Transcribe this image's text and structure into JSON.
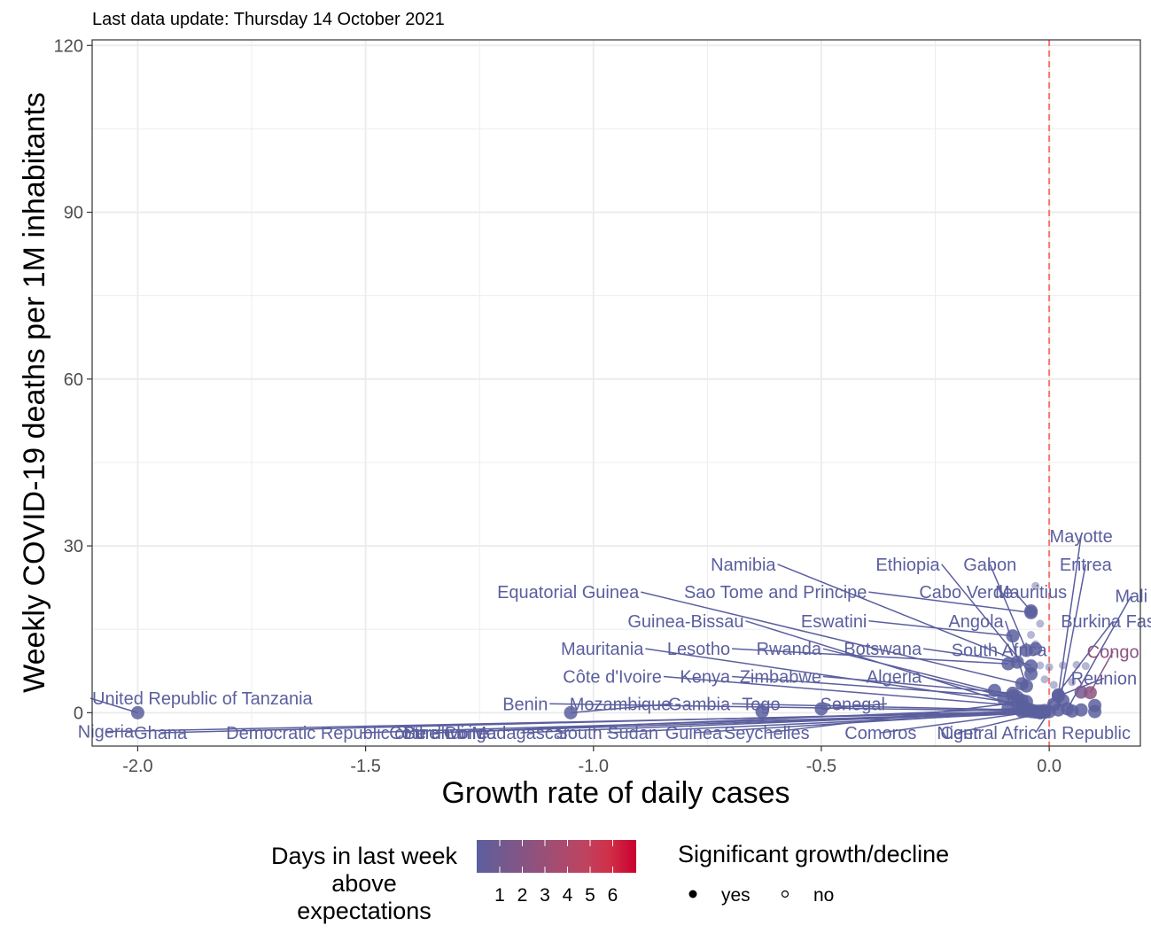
{
  "subtitle": "Last data update: Thursday 14 October 2021",
  "colors": {
    "panel_border": "#333333",
    "grid": "#ebebeb",
    "label": "#5d62a0",
    "zero_line": "#f8766d",
    "gradient": [
      "#5b5f9e",
      "#74598f",
      "#8c5380",
      "#a54c70",
      "#bd4461",
      "#d12f48",
      "#c9002e"
    ]
  },
  "chart_data": {
    "type": "scatter",
    "xlabel": "Growth rate of daily cases",
    "ylabel": "Weekly COVID-19 deaths per 1M inhabitants",
    "xlim": [
      -2.1,
      0.2
    ],
    "ylim": [
      -6,
      121
    ],
    "x_ticks": [
      -2.0,
      -1.5,
      -1.0,
      -0.5,
      0.0
    ],
    "x_tick_labels": [
      "-2.0",
      "-1.5",
      "-1.0",
      "-0.5",
      "0.0"
    ],
    "y_ticks": [
      0,
      30,
      60,
      90,
      120
    ],
    "y_tick_labels": [
      "0",
      "30",
      "60",
      "90",
      "120"
    ],
    "reference_line": {
      "x": 0,
      "style": "dashed"
    },
    "grid": true,
    "legend_position": "bottom",
    "legend": {
      "color_title_lines": [
        "Days in last week",
        "above",
        "expectations"
      ],
      "color_ticks": [
        "1",
        "2",
        "3",
        "4",
        "5",
        "6"
      ],
      "shape_title": "Significant growth/decline",
      "shape_items": [
        "yes",
        "no"
      ]
    },
    "points": [
      {
        "label": "United Republic of Tanzania",
        "x": -2.0,
        "y": 0.0,
        "days": 0,
        "significant": true,
        "lx": -2.1,
        "ly": 2.6,
        "align": "start"
      },
      {
        "label": "Nigeria",
        "x": -0.02,
        "y": 0.1,
        "days": 0,
        "significant": true,
        "lx": -2.07,
        "ly": -3.4,
        "align": "middle"
      },
      {
        "label": "Ghana",
        "x": -0.03,
        "y": 0.3,
        "days": 0,
        "significant": true,
        "lx": -1.95,
        "ly": -3.6,
        "align": "middle"
      },
      {
        "label": "Democratic Republic of the Congo",
        "x": -0.01,
        "y": 0.1,
        "days": 0,
        "significant": true,
        "lx": -1.51,
        "ly": -3.6,
        "align": "middle"
      },
      {
        "label": "Burundi",
        "x": -0.02,
        "y": 0.0,
        "days": 0,
        "significant": true,
        "lx": -1.35,
        "ly": -3.6,
        "align": "middle"
      },
      {
        "label": "Côte d'Ivoire",
        "x": -0.05,
        "y": 0.8,
        "days": 0,
        "significant": true,
        "lx": -1.34,
        "ly": -3.6,
        "align": "middle"
      },
      {
        "label": "Madagascar",
        "x": -0.03,
        "y": 0.1,
        "days": 0,
        "significant": true,
        "lx": -1.16,
        "ly": -3.6,
        "align": "middle"
      },
      {
        "label": "South Sudan",
        "x": -0.02,
        "y": 0.0,
        "days": 0,
        "significant": true,
        "lx": -0.97,
        "ly": -3.6,
        "align": "middle"
      },
      {
        "label": "Guinea",
        "x": -0.04,
        "y": 0.2,
        "days": 0,
        "significant": true,
        "lx": -0.78,
        "ly": -3.6,
        "align": "middle"
      },
      {
        "label": "Seychelles",
        "x": -0.05,
        "y": 2.0,
        "days": 0,
        "significant": true,
        "lx": -0.62,
        "ly": -3.6,
        "align": "middle"
      },
      {
        "label": "Comoros",
        "x": -0.02,
        "y": 0.3,
        "days": 0,
        "significant": true,
        "lx": -0.37,
        "ly": -3.6,
        "align": "middle"
      },
      {
        "label": "Niger",
        "x": -0.01,
        "y": 0.1,
        "days": 0,
        "significant": true,
        "lx": -0.2,
        "ly": -3.6,
        "align": "middle"
      },
      {
        "label": "Central African Republic",
        "x": 0.0,
        "y": 0.2,
        "days": 0,
        "significant": true,
        "lx": -0.03,
        "ly": -3.6,
        "align": "middle"
      },
      {
        "label": "Benin",
        "x": -0.05,
        "y": 0.3,
        "days": 0,
        "significant": true,
        "lx": -1.1,
        "ly": 1.6,
        "align": "end"
      },
      {
        "label": "Mozambique",
        "x": -1.05,
        "y": 0.0,
        "days": 0,
        "significant": true,
        "lx": -0.83,
        "ly": 1.6,
        "align": "end"
      },
      {
        "label": "Gambia",
        "x": -0.06,
        "y": 0.5,
        "days": 0,
        "significant": true,
        "lx": -0.7,
        "ly": 1.6,
        "align": "end"
      },
      {
        "label": "Togo",
        "x": -0.63,
        "y": 0.2,
        "days": 0,
        "significant": true,
        "lx": -0.59,
        "ly": 1.6,
        "align": "end"
      },
      {
        "label": "Senegal",
        "x": -0.5,
        "y": 0.7,
        "days": 0,
        "significant": true,
        "lx": -0.36,
        "ly": 1.6,
        "align": "end"
      },
      {
        "label": "Côte d'Ivoire",
        "x": -0.06,
        "y": 1.2,
        "days": 0,
        "significant": true,
        "lx": -0.85,
        "ly": 6.5,
        "align": "end"
      },
      {
        "label": "Kenya",
        "x": -0.07,
        "y": 2.8,
        "days": 0,
        "significant": true,
        "lx": -0.7,
        "ly": 6.5,
        "align": "end"
      },
      {
        "label": "Zimbabwe",
        "x": -0.08,
        "y": 3.5,
        "days": 0,
        "significant": true,
        "lx": -0.5,
        "ly": 6.5,
        "align": "end"
      },
      {
        "label": "Algeria",
        "x": -0.06,
        "y": 2.2,
        "days": 0,
        "significant": true,
        "lx": -0.28,
        "ly": 6.5,
        "align": "end"
      },
      {
        "label": "Mauritania",
        "x": -0.07,
        "y": 1.7,
        "days": 0,
        "significant": true,
        "lx": -0.89,
        "ly": 11.5,
        "align": "end"
      },
      {
        "label": "Lesotho",
        "x": -0.09,
        "y": 8.8,
        "days": 0,
        "significant": true,
        "lx": -0.7,
        "ly": 11.5,
        "align": "end"
      },
      {
        "label": "Rwanda",
        "x": -0.08,
        "y": 3.0,
        "days": 0,
        "significant": true,
        "lx": -0.5,
        "ly": 11.5,
        "align": "end"
      },
      {
        "label": "Botswana",
        "x": -0.07,
        "y": 9.1,
        "days": 0,
        "significant": true,
        "lx": -0.28,
        "ly": 11.5,
        "align": "end"
      },
      {
        "label": "Guinea-Bissau",
        "x": -0.06,
        "y": 1.0,
        "days": 0,
        "significant": true,
        "lx": -0.67,
        "ly": 16.5,
        "align": "end"
      },
      {
        "label": "Eswatini",
        "x": -0.08,
        "y": 13.8,
        "days": 0,
        "significant": true,
        "lx": -0.4,
        "ly": 16.5,
        "align": "end"
      },
      {
        "label": "Angola",
        "x": -0.05,
        "y": 4.8,
        "days": 0,
        "significant": true,
        "lx": -0.1,
        "ly": 16.5,
        "align": "end"
      },
      {
        "label": "South Africa",
        "x": -0.03,
        "y": 11.5,
        "days": 0,
        "significant": true,
        "lx": -0.005,
        "ly": 11.3,
        "align": "end"
      },
      {
        "label": "Burkina Faso",
        "x": -0.01,
        "y": 0.4,
        "days": 0,
        "significant": true,
        "lx": 0.14,
        "ly": 16.5,
        "align": "middle"
      },
      {
        "label": "Equatorial Guinea",
        "x": -0.06,
        "y": 5.2,
        "days": 0,
        "significant": true,
        "lx": -0.9,
        "ly": 21.7,
        "align": "end"
      },
      {
        "label": "Sao Tome and Principe",
        "x": -0.04,
        "y": 18.0,
        "days": 0,
        "significant": true,
        "lx": -0.4,
        "ly": 21.7,
        "align": "end"
      },
      {
        "label": "Cabo Verde",
        "x": -0.04,
        "y": 18.3,
        "days": 0,
        "significant": true,
        "lx": -0.08,
        "ly": 21.7,
        "align": "end"
      },
      {
        "label": "Mauritius",
        "x": -0.03,
        "y": 22.8,
        "days": 0,
        "significant": false,
        "lx": -0.04,
        "ly": 21.7,
        "align": "middle"
      },
      {
        "label": "Mali",
        "x": 0.04,
        "y": 0.7,
        "days": 0,
        "significant": true,
        "lx": 0.18,
        "ly": 21.0,
        "align": "middle"
      },
      {
        "label": "Namibia",
        "x": -0.04,
        "y": 8.4,
        "days": 0,
        "significant": true,
        "lx": -0.6,
        "ly": 26.7,
        "align": "end"
      },
      {
        "label": "Ethiopia",
        "x": -0.04,
        "y": 7.0,
        "days": 0,
        "significant": true,
        "lx": -0.24,
        "ly": 26.7,
        "align": "end"
      },
      {
        "label": "Gabon",
        "x": -0.05,
        "y": 11.2,
        "days": 0,
        "significant": true,
        "lx": -0.13,
        "ly": 26.7,
        "align": "middle"
      },
      {
        "label": "Eritrea",
        "x": 0.02,
        "y": 0.5,
        "days": 0,
        "significant": true,
        "lx": 0.08,
        "ly": 26.7,
        "align": "middle"
      },
      {
        "label": "Mayotte",
        "x": 0.02,
        "y": 3.2,
        "days": 0,
        "significant": true,
        "lx": 0.07,
        "ly": 31.8,
        "align": "middle"
      },
      {
        "label": "Congo",
        "x": 0.09,
        "y": 3.6,
        "days": 2,
        "significant": true,
        "lx": 0.14,
        "ly": 11.0,
        "align": "middle"
      },
      {
        "label": "Reunion",
        "x": 0.02,
        "y": 3.0,
        "days": 0,
        "significant": true,
        "lx": 0.12,
        "ly": 6.2,
        "align": "middle"
      }
    ],
    "extra_points": [
      {
        "x": -0.02,
        "y": 8.5,
        "days": 0,
        "significant": false
      },
      {
        "x": 0.0,
        "y": 8.2,
        "days": 0,
        "significant": false
      },
      {
        "x": 0.03,
        "y": 8.5,
        "days": 0,
        "significant": false
      },
      {
        "x": 0.06,
        "y": 8.6,
        "days": 0,
        "significant": false
      },
      {
        "x": 0.08,
        "y": 8.4,
        "days": 0,
        "significant": false
      },
      {
        "x": -0.04,
        "y": 14.0,
        "days": 0,
        "significant": false
      },
      {
        "x": -0.03,
        "y": 12.3,
        "days": 0,
        "significant": false
      },
      {
        "x": -0.02,
        "y": 16.0,
        "days": 0,
        "significant": false
      },
      {
        "x": 0.01,
        "y": 5.0,
        "days": 0,
        "significant": false
      },
      {
        "x": 0.05,
        "y": 5.5,
        "days": 0,
        "significant": false
      },
      {
        "x": -0.01,
        "y": 6.0,
        "days": 0,
        "significant": false
      },
      {
        "x": 0.07,
        "y": 3.7,
        "days": 1,
        "significant": true
      },
      {
        "x": 0.1,
        "y": 1.3,
        "days": 0,
        "significant": true
      },
      {
        "x": 0.1,
        "y": 0.2,
        "days": 0,
        "significant": true
      },
      {
        "x": 0.07,
        "y": 0.5,
        "days": 0,
        "significant": true
      },
      {
        "x": 0.05,
        "y": 0.3,
        "days": 0,
        "significant": true
      },
      {
        "x": -0.12,
        "y": 4.0,
        "days": 0,
        "significant": true
      },
      {
        "x": -0.1,
        "y": 2.5,
        "days": 0,
        "significant": true
      },
      {
        "x": -0.09,
        "y": 0.8,
        "days": 0,
        "significant": true
      },
      {
        "x": -0.06,
        "y": 0.2,
        "days": 0,
        "significant": true
      },
      {
        "x": -0.04,
        "y": 0.5,
        "days": 0,
        "significant": true
      },
      {
        "x": 0.01,
        "y": 1.5,
        "days": 0,
        "significant": true
      },
      {
        "x": 0.03,
        "y": 2.2,
        "days": 0,
        "significant": true
      }
    ]
  }
}
